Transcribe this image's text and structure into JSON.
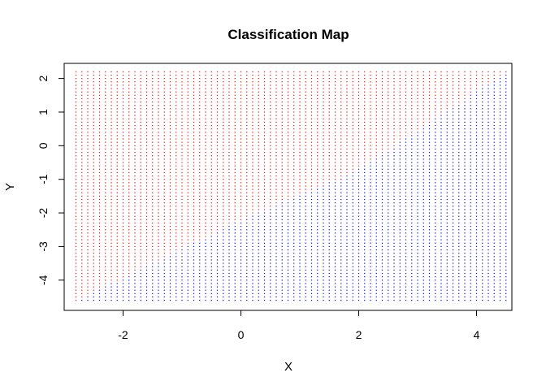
{
  "chart_data": {
    "type": "scatter",
    "title": "Classification Map",
    "xlabel": "X",
    "ylabel": "Y",
    "xlim": [
      -3.0,
      4.6
    ],
    "ylim": [
      -4.9,
      2.45
    ],
    "x_ticks": [
      -2,
      0,
      2,
      4
    ],
    "y_ticks": [
      -4,
      -3,
      -2,
      -1,
      0,
      1,
      2
    ],
    "grid": false,
    "legend": "none",
    "grid_points": {
      "x_start": -2.8,
      "x_end": 4.5,
      "x_step": 0.1,
      "y_start": -4.6,
      "y_end": 2.2,
      "y_step": 0.1
    },
    "decision_boundary": {
      "description_points": [
        [
          -2.8,
          -4.6
        ],
        [
          0,
          -2.2
        ],
        [
          2,
          -0.7
        ],
        [
          4.5,
          2.2
        ]
      ]
    },
    "series": [
      {
        "color": "#ff0000",
        "region": "above boundary"
      },
      {
        "color": "#0000ff",
        "region": "below boundary"
      }
    ]
  }
}
